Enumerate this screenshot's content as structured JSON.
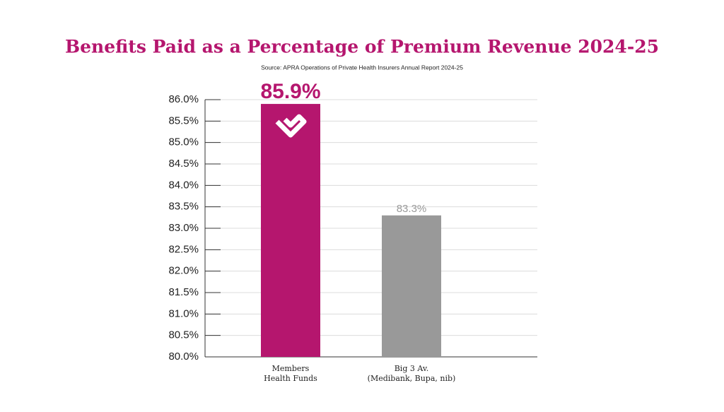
{
  "chart_data": {
    "type": "bar",
    "title": "Benefits Paid as a Percentage of Premium Revenue 2024-25",
    "subtitle": "Source: APRA Operations of Private Health Insurers Annual Report 2024-25",
    "categories": [
      "Members\nHealth Funds",
      "Big 3 Av.\n(Medibank, Bupa, nib)"
    ],
    "values": [
      85.9,
      83.3
    ],
    "value_labels": [
      "85.9%",
      "83.3%"
    ],
    "colors": [
      "#b5166e",
      "#999999"
    ],
    "ylim": [
      80,
      86
    ],
    "yticks": [
      {
        "value": 80,
        "label": "80.0%"
      },
      {
        "value": 80.5,
        "label": "80.5%"
      },
      {
        "value": 81,
        "label": "81.0%"
      },
      {
        "value": 81.5,
        "label": "81.5%"
      },
      {
        "value": 82,
        "label": "82.0%"
      },
      {
        "value": 82.5,
        "label": "82.5%"
      },
      {
        "value": 83,
        "label": "83.0%"
      },
      {
        "value": 83.5,
        "label": "83.5%"
      },
      {
        "value": 84,
        "label": "84.0%"
      },
      {
        "value": 84.5,
        "label": "84.5%"
      },
      {
        "value": 85,
        "label": "85.0%"
      },
      {
        "value": 85.5,
        "label": "85.5%"
      },
      {
        "value": 86,
        "label": "86.0%"
      }
    ],
    "grid": true
  }
}
